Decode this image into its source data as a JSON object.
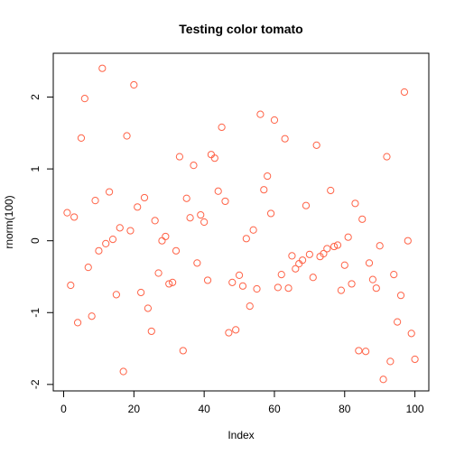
{
  "chart_data": {
    "type": "scatter",
    "title": "Testing color tomato",
    "xlabel": "Index",
    "ylabel": "rnorm(100)",
    "xlim": [
      -2.96,
      103.96
    ],
    "ylim": [
      -2.09,
      2.61
    ],
    "xticks": [
      0,
      20,
      40,
      60,
      80,
      100
    ],
    "yticks": [
      -2,
      -1,
      0,
      1,
      2
    ],
    "grid": false,
    "marker": "open-circle",
    "point_color": "#FF6347",
    "x": [
      1,
      2,
      3,
      4,
      5,
      6,
      7,
      8,
      9,
      10,
      11,
      12,
      13,
      14,
      15,
      16,
      17,
      18,
      19,
      20,
      21,
      22,
      23,
      24,
      25,
      26,
      27,
      28,
      29,
      30,
      31,
      32,
      33,
      34,
      35,
      36,
      37,
      38,
      39,
      40,
      41,
      42,
      43,
      44,
      45,
      46,
      47,
      48,
      49,
      50,
      51,
      52,
      53,
      54,
      55,
      56,
      57,
      58,
      59,
      60,
      61,
      62,
      63,
      64,
      65,
      66,
      67,
      68,
      69,
      70,
      71,
      72,
      73,
      74,
      75,
      76,
      77,
      78,
      79,
      80,
      81,
      82,
      83,
      84,
      85,
      86,
      87,
      88,
      89,
      90,
      91,
      92,
      93,
      94,
      95,
      96,
      97,
      98,
      99,
      100
    ],
    "y": [
      0.39,
      -0.62,
      0.33,
      -1.14,
      1.43,
      1.98,
      -0.37,
      -1.05,
      0.56,
      -0.14,
      2.4,
      -0.04,
      0.68,
      0.02,
      -0.75,
      0.18,
      -1.82,
      1.46,
      0.14,
      2.17,
      0.47,
      -0.72,
      0.6,
      -0.94,
      -1.26,
      0.28,
      -0.45,
      0.0,
      0.06,
      -0.6,
      -0.58,
      -0.14,
      1.17,
      -1.53,
      0.59,
      0.32,
      1.05,
      -0.31,
      0.36,
      0.26,
      -0.55,
      1.2,
      1.15,
      0.69,
      1.58,
      0.55,
      -1.28,
      -0.58,
      -1.24,
      -0.48,
      -0.63,
      0.03,
      -0.91,
      0.15,
      -0.67,
      1.76,
      0.71,
      0.9,
      0.38,
      1.68,
      -0.65,
      -0.47,
      1.42,
      -0.66,
      -0.21,
      -0.39,
      -0.32,
      -0.27,
      0.49,
      -0.19,
      -0.51,
      1.33,
      -0.22,
      -0.18,
      -0.11,
      0.7,
      -0.08,
      -0.06,
      -0.69,
      -0.34,
      0.05,
      -0.6,
      0.52,
      -1.53,
      0.3,
      -1.54,
      -0.31,
      -0.54,
      -0.66,
      -0.07,
      -1.93,
      1.17,
      -1.68,
      -0.47,
      -1.13,
      -0.76,
      2.07,
      0.0,
      -1.29,
      -1.65
    ]
  }
}
